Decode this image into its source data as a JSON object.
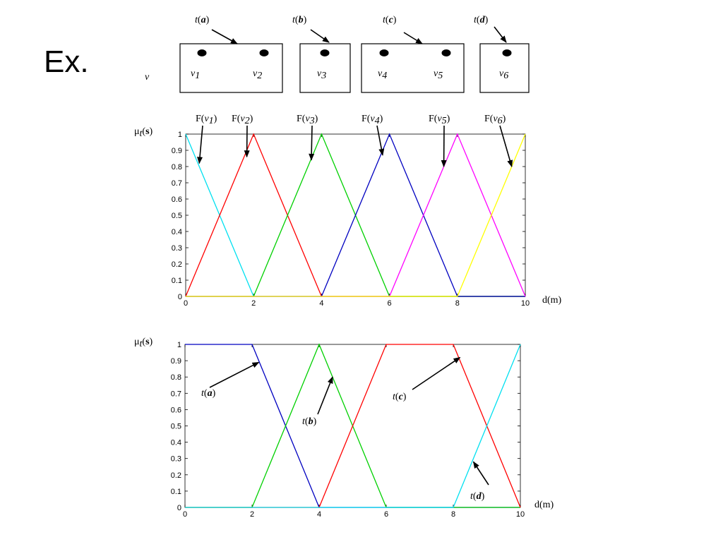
{
  "slide_title": "Ex.",
  "diagram": {
    "set_symbol": "ν",
    "regions": [
      {
        "label": "t(a)",
        "t": "t",
        "letter": "a",
        "nodes": [
          "ν1",
          "ν2"
        ]
      },
      {
        "label": "t(b)",
        "t": "t",
        "letter": "b",
        "nodes": [
          "ν3"
        ]
      },
      {
        "label": "t(c)",
        "t": "t",
        "letter": "c",
        "nodes": [
          "ν4",
          "ν5"
        ]
      },
      {
        "label": "t(d)",
        "t": "t",
        "letter": "d",
        "nodes": [
          "ν6"
        ]
      }
    ]
  },
  "chart_data": [
    {
      "type": "line",
      "ylabel": "μt(s)",
      "xlabel": "d(m)",
      "xlim": [
        0,
        10
      ],
      "ylim": [
        0,
        1
      ],
      "xticks": [
        "0",
        "2",
        "4",
        "6",
        "8",
        "10"
      ],
      "yticks": [
        "0",
        "0.1",
        "0.2",
        "0.3",
        "0.4",
        "0.5",
        "0.6",
        "0.7",
        "0.8",
        "0.9",
        "1"
      ],
      "series": [
        {
          "name": "F(ν1)",
          "color": "#00e0f0",
          "x": [
            0,
            2,
            10
          ],
          "y": [
            1,
            0,
            0
          ]
        },
        {
          "name": "F(ν2)",
          "color": "#ff0000",
          "x": [
            0,
            2,
            4,
            10
          ],
          "y": [
            0,
            1,
            0,
            0
          ]
        },
        {
          "name": "F(ν3)",
          "color": "#00d000",
          "x": [
            0,
            2,
            4,
            6,
            10
          ],
          "y": [
            0,
            0,
            1,
            0,
            0
          ]
        },
        {
          "name": "F(ν4)",
          "color": "#0000c0",
          "x": [
            0,
            4,
            6,
            8,
            10
          ],
          "y": [
            0,
            0,
            1,
            0,
            0
          ]
        },
        {
          "name": "F(ν5)",
          "color": "#ff00ff",
          "x": [
            0,
            6,
            8,
            10
          ],
          "y": [
            0,
            0,
            1,
            0
          ]
        },
        {
          "name": "F(ν6)",
          "color": "#ffff00",
          "x": [
            0,
            8,
            10
          ],
          "y": [
            0,
            0,
            1
          ]
        }
      ],
      "annotations": [
        {
          "text": "F(ν1)",
          "target": [
            0.4,
            0.82
          ]
        },
        {
          "text": "F(ν2)",
          "target": [
            1.8,
            0.86
          ]
        },
        {
          "text": "F(ν3)",
          "target": [
            3.7,
            0.84
          ]
        },
        {
          "text": "F(ν4)",
          "target": [
            5.8,
            0.87
          ]
        },
        {
          "text": "F(ν5)",
          "target": [
            7.6,
            0.8
          ]
        },
        {
          "text": "F(ν6)",
          "target": [
            9.6,
            0.8
          ]
        }
      ]
    },
    {
      "type": "line",
      "ylabel": "μt(s)",
      "xlabel": "d(m)",
      "xlim": [
        0,
        10
      ],
      "ylim": [
        0,
        1
      ],
      "xticks": [
        "0",
        "2",
        "4",
        "6",
        "8",
        "10"
      ],
      "yticks": [
        "0",
        "0.1",
        "0.2",
        "0.3",
        "0.4",
        "0.5",
        "0.6",
        "0.7",
        "0.8",
        "0.9",
        "1"
      ],
      "series": [
        {
          "name": "t(a)",
          "color": "#0000c0",
          "x": [
            0,
            2,
            4,
            10
          ],
          "y": [
            1,
            1,
            0,
            0
          ]
        },
        {
          "name": "t(b)",
          "color": "#00d000",
          "x": [
            0,
            2,
            4,
            6,
            10
          ],
          "y": [
            0,
            0,
            1,
            0,
            0
          ]
        },
        {
          "name": "t(c)",
          "color": "#ff0000",
          "x": [
            0,
            4,
            6,
            8,
            10
          ],
          "y": [
            0,
            0,
            1,
            1,
            0
          ]
        },
        {
          "name": "t(d)",
          "color": "#00e0f0",
          "x": [
            0,
            8,
            10
          ],
          "y": [
            0,
            0,
            1
          ]
        }
      ],
      "annotations": [
        {
          "text": "t(a)",
          "target": [
            2.2,
            0.89
          ]
        },
        {
          "text": "t(b)",
          "target": [
            4.4,
            0.8
          ]
        },
        {
          "text": "t(c)",
          "target": [
            8.2,
            0.92
          ]
        },
        {
          "text": "t(d)",
          "target": [
            8.6,
            0.28
          ]
        }
      ]
    }
  ]
}
